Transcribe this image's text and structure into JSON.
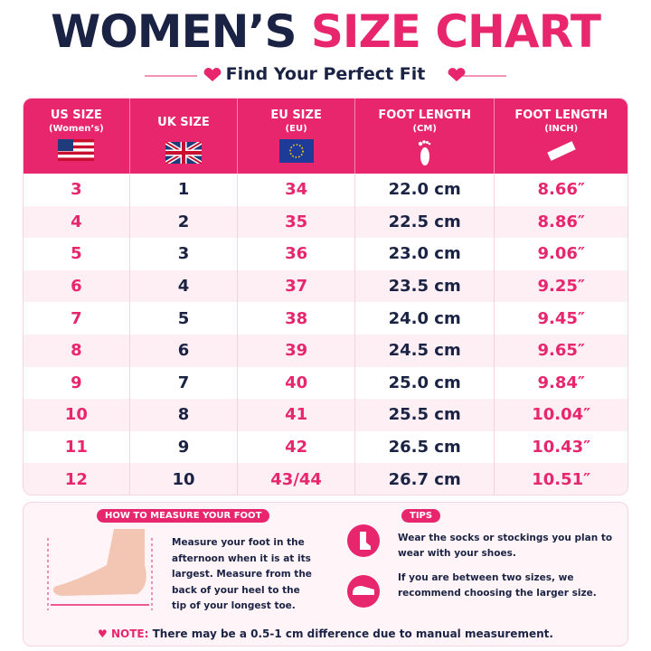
{
  "header": {
    "title_dark": "WOMEN’S",
    "title_accent": "SIZE CHART",
    "subtitle": "Find Your Perfect Fit"
  },
  "table": {
    "columns": [
      {
        "label": "US SIZE",
        "sublabel": "(Women’s)"
      },
      {
        "label": "UK SIZE"
      },
      {
        "label": "EU SIZE",
        "sublabel": "(EU)"
      },
      {
        "label": "FOOT LENGTH",
        "sublabel": "(CM)"
      },
      {
        "label": "FOOT LENGTH",
        "sublabel": "(INCH)"
      }
    ],
    "rows": [
      [
        "3",
        "1",
        "34",
        "22.0 cm",
        "8.66″"
      ],
      [
        "4",
        "2",
        "35",
        "22.5 cm",
        "8.86″"
      ],
      [
        "5",
        "3",
        "36",
        "23.0 cm",
        "9.06″"
      ],
      [
        "6",
        "4",
        "37",
        "23.5 cm",
        "9.25″"
      ],
      [
        "7",
        "5",
        "38",
        "24.0 cm",
        "9.45″"
      ],
      [
        "8",
        "6",
        "39",
        "24.5 cm",
        "9.65″"
      ],
      [
        "9",
        "7",
        "40",
        "25.0 cm",
        "9.84″"
      ],
      [
        "10",
        "8",
        "41",
        "25.5 cm",
        "10.04″"
      ],
      [
        "11",
        "9",
        "42",
        "26.5 cm",
        "10.43″"
      ],
      [
        "12",
        "10",
        "43/44",
        "26.7 cm",
        "10.51″"
      ]
    ]
  },
  "measure": {
    "label": "HOW TO MEASURE YOUR FOOT",
    "text": "Measure your foot in the afternoon when it is at its largest. Measure from the back of your heel to the tip of your longest toe."
  },
  "tips": {
    "label": "TIPS",
    "items": [
      "Wear the socks or stockings you plan to wear with your shoes.",
      "If you are between two sizes, we recommend choosing the larger size."
    ]
  },
  "note": {
    "label": "NOTE:",
    "text": "There may be a 0.5-1 cm difference due to manual measurement."
  }
}
